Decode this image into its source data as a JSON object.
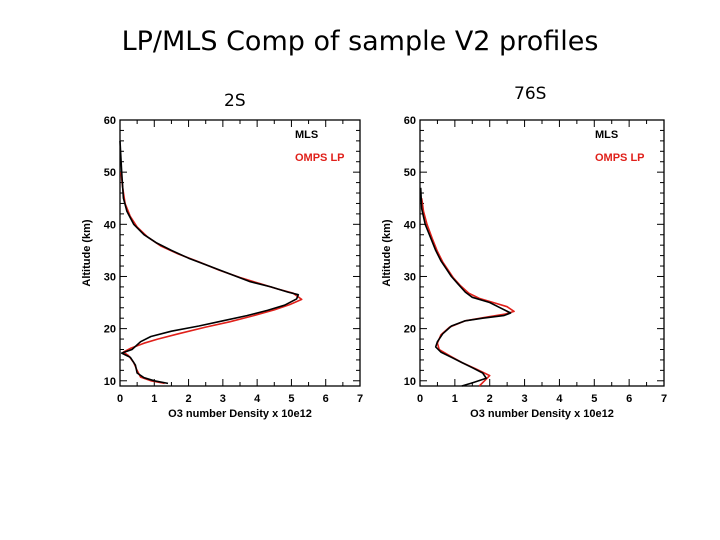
{
  "slide": {
    "title": "LP/MLS Comp of sample V2 profiles"
  },
  "colors": {
    "mls": "#000000",
    "omps_lp": "#e0201a"
  },
  "chart_data": [
    {
      "type": "line",
      "panel_label": "2S",
      "xlabel": "O3 number Density x 10e12",
      "ylabel": "Altitude (km)",
      "xlim": [
        0,
        7
      ],
      "ylim": [
        9,
        60
      ],
      "xticks": [
        "0",
        "1",
        "2",
        "3",
        "4",
        "5",
        "6",
        "7"
      ],
      "yticks": [
        "10",
        "20",
        "30",
        "40",
        "50",
        "60"
      ],
      "legend_position": "top-right",
      "series": [
        {
          "name": "MLS",
          "points": [
            [
              1.4,
              9.5
            ],
            [
              1.0,
              10.0
            ],
            [
              0.7,
              10.6
            ],
            [
              0.5,
              11.5
            ],
            [
              0.45,
              13.0
            ],
            [
              0.3,
              14.5
            ],
            [
              0.05,
              15.3
            ],
            [
              0.35,
              16.0
            ],
            [
              0.6,
              17.5
            ],
            [
              0.9,
              18.5
            ],
            [
              1.5,
              19.5
            ],
            [
              2.3,
              20.5
            ],
            [
              3.0,
              21.5
            ],
            [
              3.7,
              22.5
            ],
            [
              4.3,
              23.5
            ],
            [
              4.8,
              24.5
            ],
            [
              5.15,
              25.7
            ],
            [
              5.2,
              26.5
            ],
            [
              4.9,
              27.0
            ],
            [
              4.4,
              28.0
            ],
            [
              3.8,
              29.0
            ],
            [
              3.2,
              30.5
            ],
            [
              2.6,
              32.0
            ],
            [
              2.0,
              33.5
            ],
            [
              1.5,
              35.0
            ],
            [
              1.05,
              36.5
            ],
            [
              0.7,
              38.0
            ],
            [
              0.4,
              40.0
            ],
            [
              0.2,
              42.5
            ],
            [
              0.1,
              45.0
            ],
            [
              0.05,
              50.0
            ],
            [
              0.0,
              56.0
            ]
          ]
        },
        {
          "name": "OMPS LP",
          "points": [
            [
              1.3,
              9.5
            ],
            [
              0.9,
              10.0
            ],
            [
              0.6,
              10.7
            ],
            [
              0.5,
              12.0
            ],
            [
              0.4,
              13.5
            ],
            [
              0.25,
              14.8
            ],
            [
              0.1,
              15.5
            ],
            [
              0.3,
              16.2
            ],
            [
              0.7,
              17.2
            ],
            [
              1.1,
              18.0
            ],
            [
              1.7,
              19.0
            ],
            [
              2.5,
              20.3
            ],
            [
              3.2,
              21.3
            ],
            [
              3.9,
              22.5
            ],
            [
              4.5,
              23.6
            ],
            [
              4.95,
              24.6
            ],
            [
              5.3,
              25.6
            ],
            [
              5.05,
              26.8
            ],
            [
              4.6,
              27.6
            ],
            [
              4.1,
              28.6
            ],
            [
              3.5,
              29.8
            ],
            [
              2.9,
              31.2
            ],
            [
              2.3,
              32.8
            ],
            [
              1.7,
              34.3
            ],
            [
              1.2,
              35.8
            ],
            [
              0.8,
              37.6
            ],
            [
              0.5,
              39.5
            ],
            [
              0.3,
              41.5
            ],
            [
              0.15,
              44.0
            ],
            [
              0.08,
              47.0
            ],
            [
              0.03,
              50.0
            ]
          ]
        }
      ]
    },
    {
      "type": "line",
      "panel_label": "76S",
      "xlabel": "O3 number Density x 10e12",
      "ylabel": "Altitude (km)",
      "xlim": [
        0,
        7
      ],
      "ylim": [
        9,
        60
      ],
      "xticks": [
        "0",
        "1",
        "2",
        "3",
        "4",
        "5",
        "6",
        "7"
      ],
      "yticks": [
        "10",
        "20",
        "30",
        "40",
        "50",
        "60"
      ],
      "legend_position": "top-right",
      "series": [
        {
          "name": "MLS",
          "points": [
            [
              1.2,
              9.0
            ],
            [
              1.5,
              9.6
            ],
            [
              1.9,
              10.5
            ],
            [
              1.8,
              11.5
            ],
            [
              1.5,
              12.5
            ],
            [
              1.2,
              13.5
            ],
            [
              0.9,
              14.5
            ],
            [
              0.6,
              15.5
            ],
            [
              0.45,
              16.5
            ],
            [
              0.5,
              17.5
            ],
            [
              0.65,
              19.0
            ],
            [
              0.9,
              20.5
            ],
            [
              1.3,
              21.5
            ],
            [
              1.8,
              22.0
            ],
            [
              2.4,
              22.5
            ],
            [
              2.6,
              23.0
            ],
            [
              2.3,
              24.0
            ],
            [
              2.0,
              25.0
            ],
            [
              1.5,
              26.0
            ],
            [
              1.3,
              27.0
            ],
            [
              1.1,
              28.5
            ],
            [
              0.9,
              30.0
            ],
            [
              0.75,
              31.5
            ],
            [
              0.6,
              33.0
            ],
            [
              0.45,
              35.0
            ],
            [
              0.3,
              37.5
            ],
            [
              0.15,
              40.0
            ],
            [
              0.05,
              43.0
            ],
            [
              0.02,
              47.0
            ]
          ]
        },
        {
          "name": "OMPS LP",
          "points": [
            [
              1.7,
              9.0
            ],
            [
              1.85,
              10.0
            ],
            [
              2.0,
              11.0
            ],
            [
              1.6,
              12.3
            ],
            [
              1.2,
              13.5
            ],
            [
              0.85,
              14.8
            ],
            [
              0.55,
              16.0
            ],
            [
              0.5,
              17.2
            ],
            [
              0.6,
              18.8
            ],
            [
              0.85,
              20.3
            ],
            [
              1.3,
              21.5
            ],
            [
              1.9,
              22.2
            ],
            [
              2.45,
              22.8
            ],
            [
              2.7,
              23.3
            ],
            [
              2.5,
              24.2
            ],
            [
              2.1,
              25.0
            ],
            [
              1.7,
              25.8
            ],
            [
              1.4,
              26.8
            ],
            [
              1.15,
              28.3
            ],
            [
              0.95,
              29.8
            ],
            [
              0.8,
              31.3
            ],
            [
              0.65,
              32.8
            ],
            [
              0.5,
              34.8
            ],
            [
              0.35,
              37.3
            ],
            [
              0.2,
              40.0
            ],
            [
              0.1,
              42.5
            ],
            [
              0.05,
              45.0
            ]
          ]
        }
      ]
    }
  ]
}
